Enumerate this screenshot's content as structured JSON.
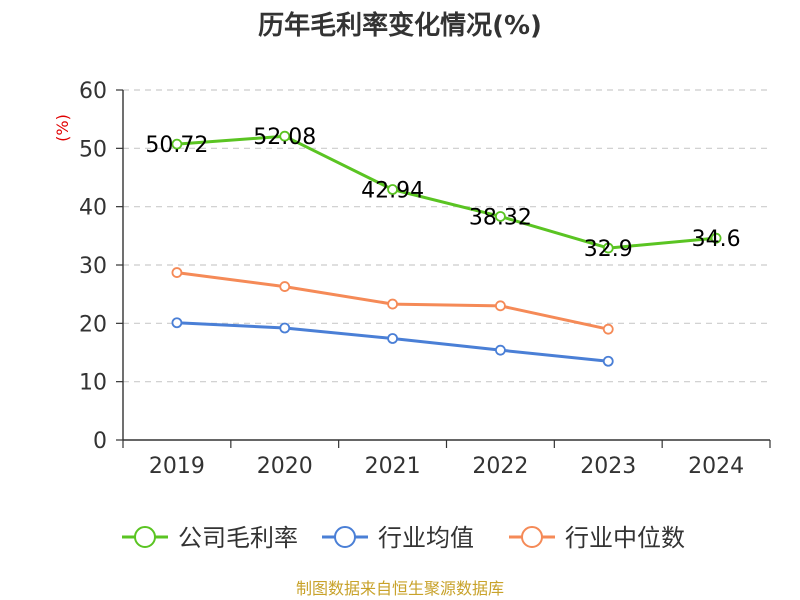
{
  "chart_data": {
    "type": "line",
    "title": "历年毛利率变化情况(%)",
    "ylabel": "(%)",
    "xlabel": "",
    "categories": [
      "2019",
      "2020",
      "2021",
      "2022",
      "2023",
      "2024"
    ],
    "ylim": [
      0,
      60
    ],
    "yticks": [
      0,
      10,
      20,
      30,
      40,
      50,
      60
    ],
    "grid": true,
    "legend_position": "bottom",
    "series": [
      {
        "name": "公司毛利率",
        "color": "#5ac422",
        "values": [
          50.72,
          52.08,
          42.94,
          38.32,
          32.9,
          34.6
        ],
        "data_labels": [
          "50.72",
          "52.08",
          "42.94",
          "38.32",
          "32.9",
          "34.6"
        ]
      },
      {
        "name": "行业均值",
        "color": "#4a7fd6",
        "values": [
          20.1,
          19.2,
          17.4,
          15.4,
          13.5,
          null
        ],
        "data_labels": []
      },
      {
        "name": "行业中位数",
        "color": "#f58a57",
        "values": [
          28.7,
          26.3,
          23.3,
          23.0,
          19.0,
          null
        ],
        "data_labels": []
      }
    ]
  },
  "footer": {
    "source": "制图数据来自恒生聚源数据库"
  }
}
